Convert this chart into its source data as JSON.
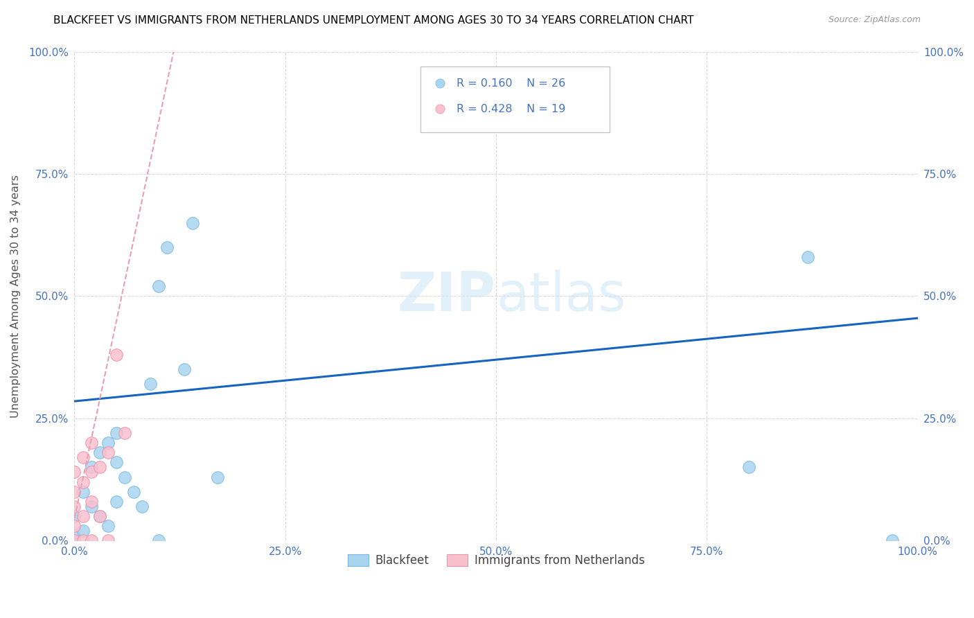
{
  "title": "BLACKFEET VS IMMIGRANTS FROM NETHERLANDS UNEMPLOYMENT AMONG AGES 30 TO 34 YEARS CORRELATION CHART",
  "source": "Source: ZipAtlas.com",
  "ylabel": "Unemployment Among Ages 30 to 34 years",
  "xlim": [
    0,
    1.0
  ],
  "ylim": [
    0,
    1.0
  ],
  "color_blue": "#a8d4f0",
  "color_blue_edge": "#7ab8e0",
  "color_pink": "#f9c0ce",
  "color_pink_edge": "#f090a8",
  "color_trendline_blue": "#1565C0",
  "color_trendline_pink": "#e8a0b0",
  "color_tick": "#4472C4",
  "color_grid": "#d0d0d0",
  "color_ylabel": "#555555",
  "watermark_color": "#d0e8f5",
  "blackfeet_x": [
    0.0,
    0.0,
    0.01,
    0.01,
    0.02,
    0.02,
    0.03,
    0.03,
    0.04,
    0.04,
    0.05,
    0.05,
    0.05,
    0.06,
    0.07,
    0.08,
    0.09,
    0.1,
    0.1,
    0.11,
    0.13,
    0.14,
    0.17,
    0.8,
    0.87,
    0.97
  ],
  "blackfeet_y": [
    0.01,
    0.05,
    0.02,
    0.1,
    0.07,
    0.15,
    0.05,
    0.18,
    0.2,
    0.03,
    0.08,
    0.16,
    0.22,
    0.13,
    0.1,
    0.07,
    0.32,
    0.0,
    0.52,
    0.6,
    0.35,
    0.65,
    0.13,
    0.15,
    0.58,
    0.0
  ],
  "netherlands_x": [
    0.0,
    0.0,
    0.0,
    0.0,
    0.0,
    0.01,
    0.01,
    0.01,
    0.01,
    0.02,
    0.02,
    0.02,
    0.02,
    0.03,
    0.03,
    0.04,
    0.04,
    0.05,
    0.06
  ],
  "netherlands_y": [
    0.0,
    0.03,
    0.07,
    0.1,
    0.14,
    0.0,
    0.05,
    0.12,
    0.17,
    0.0,
    0.08,
    0.14,
    0.2,
    0.05,
    0.15,
    0.0,
    0.18,
    0.38,
    0.22
  ],
  "blue_trend_x0": 0.0,
  "blue_trend_y0": 0.285,
  "blue_trend_x1": 1.0,
  "blue_trend_y1": 0.455,
  "pink_trend_x0": 0.0,
  "pink_trend_y0": 0.045,
  "pink_trend_x1": 0.12,
  "pink_trend_y1": 1.02
}
